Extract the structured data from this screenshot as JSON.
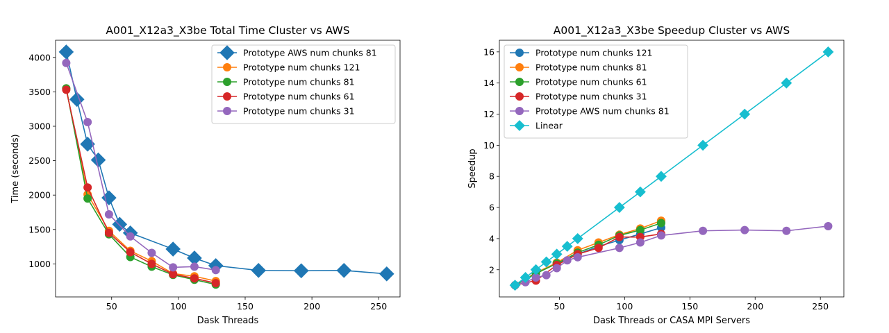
{
  "chart_data": [
    {
      "type": "line",
      "title": "A001_X12a3_X3be Total Time Cluster vs AWS",
      "xlabel": "Dask Threads",
      "ylabel": "Time (seconds)",
      "xlim": [
        8,
        266
      ],
      "ylim": [
        520,
        4250
      ],
      "xticks": [
        50,
        100,
        150,
        200,
        250
      ],
      "yticks": [
        1000,
        1500,
        2000,
        2500,
        3000,
        3500,
        4000
      ],
      "grid": false,
      "legend_position": "upper right",
      "series": [
        {
          "name": "Prototype AWS num chunks 81",
          "color": "#1f77b4",
          "marker": "diamond",
          "x": [
            16,
            24,
            32,
            40,
            48,
            56,
            64,
            96,
            112,
            128,
            160,
            192,
            224,
            256
          ],
          "y": [
            4080,
            3390,
            2740,
            2510,
            1960,
            1575,
            1450,
            1215,
            1085,
            975,
            905,
            900,
            905,
            855
          ]
        },
        {
          "name": "Prototype num chunks 121",
          "color": "#ff7f0e",
          "marker": "circle",
          "x": [
            16,
            32,
            48,
            64,
            80,
            96,
            112,
            128
          ],
          "y": [
            3550,
            2010,
            1480,
            1190,
            1040,
            860,
            820,
            750
          ]
        },
        {
          "name": "Prototype num chunks 81",
          "color": "#2ca02c",
          "marker": "circle",
          "x": [
            16,
            32,
            48,
            64,
            80,
            96,
            112,
            128
          ],
          "y": [
            3550,
            1950,
            1430,
            1100,
            960,
            840,
            770,
            700
          ]
        },
        {
          "name": "Prototype num chunks 61",
          "color": "#d62728",
          "marker": "circle",
          "x": [
            16,
            32,
            48,
            64,
            80,
            96,
            112,
            128
          ],
          "y": [
            3530,
            2110,
            1450,
            1170,
            1000,
            850,
            790,
            720
          ]
        },
        {
          "name": "Prototype num chunks 31",
          "color": "#9467bd",
          "marker": "circle",
          "x": [
            16,
            32,
            48,
            64,
            80,
            96,
            112,
            128
          ],
          "y": [
            3920,
            3060,
            1720,
            1400,
            1160,
            950,
            960,
            910
          ]
        }
      ]
    },
    {
      "type": "line",
      "title": "A001_X12a3_X3be Speedup Cluster vs AWS",
      "xlabel": "Dask Threads or CASA MPI Servers",
      "ylabel": "Speedup",
      "xlim": [
        4,
        268
      ],
      "ylim": [
        0.25,
        16.75
      ],
      "xticks": [
        50,
        100,
        150,
        200,
        250
      ],
      "yticks": [
        2,
        4,
        6,
        8,
        10,
        12,
        14,
        16
      ],
      "grid": false,
      "legend_position": "upper left",
      "series": [
        {
          "name": "Prototype num chunks 121",
          "color": "#1f77b4",
          "marker": "circle",
          "x": [
            16,
            32,
            48,
            64,
            80,
            96,
            112,
            128
          ],
          "y": [
            1.0,
            1.8,
            2.4,
            3.0,
            3.5,
            3.9,
            4.3,
            4.7
          ]
        },
        {
          "name": "Prototype num chunks 81",
          "color": "#ff7f0e",
          "marker": "circle",
          "x": [
            16,
            32,
            48,
            64,
            80,
            96,
            112,
            128
          ],
          "y": [
            1.0,
            1.8,
            2.45,
            3.25,
            3.75,
            4.25,
            4.65,
            5.15
          ]
        },
        {
          "name": "Prototype num chunks 61",
          "color": "#2ca02c",
          "marker": "circle",
          "x": [
            16,
            32,
            48,
            64,
            80,
            96,
            112,
            128
          ],
          "y": [
            1.0,
            1.75,
            2.4,
            3.1,
            3.6,
            4.2,
            4.55,
            5.0
          ]
        },
        {
          "name": "Prototype num chunks 31",
          "color": "#d62728",
          "marker": "circle",
          "x": [
            16,
            32,
            48,
            64,
            80,
            96,
            112,
            128
          ],
          "y": [
            1.0,
            1.3,
            2.3,
            3.0,
            3.4,
            4.1,
            4.1,
            4.3
          ]
        },
        {
          "name": "Prototype AWS num chunks 81",
          "color": "#9467bd",
          "marker": "circle",
          "x": [
            16,
            24,
            32,
            40,
            48,
            56,
            64,
            96,
            112,
            128,
            160,
            192,
            224,
            256
          ],
          "y": [
            1.0,
            1.2,
            1.5,
            1.65,
            2.1,
            2.6,
            2.8,
            3.4,
            3.75,
            4.2,
            4.5,
            4.55,
            4.5,
            4.8
          ]
        },
        {
          "name": "Linear",
          "color": "#17becf",
          "marker": "diamond",
          "x": [
            16,
            24,
            32,
            40,
            48,
            56,
            64,
            96,
            112,
            128,
            160,
            192,
            224,
            256
          ],
          "y": [
            1,
            1.5,
            2,
            2.5,
            3,
            3.5,
            4,
            6,
            7,
            8,
            10,
            12,
            14,
            16
          ]
        }
      ]
    }
  ]
}
